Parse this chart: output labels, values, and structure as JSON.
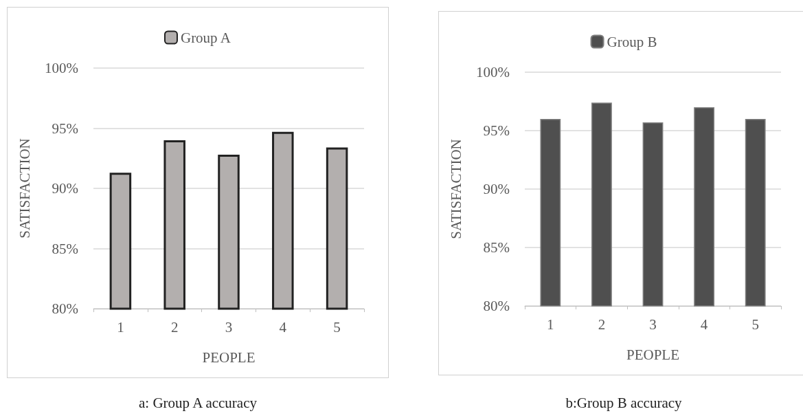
{
  "chart_data": [
    {
      "type": "bar",
      "categories": [
        "1",
        "2",
        "3",
        "4",
        "5"
      ],
      "xlabel": "PEOPLE",
      "ylabel": "SATISFACTION",
      "series": [
        {
          "name": "Group A",
          "color": "#b3afae",
          "values": [
            91.3,
            94.0,
            92.8,
            94.7,
            93.4
          ]
        }
      ],
      "ylim": [
        80,
        100
      ],
      "yticks": [
        {
          "value": 80,
          "label": "80%"
        },
        {
          "value": 85,
          "label": "85%"
        },
        {
          "value": 90,
          "label": "90%"
        },
        {
          "value": 95,
          "label": "95%"
        },
        {
          "value": 100,
          "label": "100%"
        }
      ],
      "grid": "y",
      "legend": "top",
      "annotations": [
        "a: Group A accuracy"
      ]
    },
    {
      "type": "bar",
      "categories": [
        "1",
        "2",
        "3",
        "4",
        "5"
      ],
      "xlabel": "PEOPLE",
      "ylabel": "SATISFACTION",
      "series": [
        {
          "name": "Group B",
          "color": "#4f4f4f",
          "values": [
            96.0,
            97.4,
            95.7,
            97.0,
            96.0
          ]
        }
      ],
      "ylim": [
        80,
        100
      ],
      "yticks": [
        {
          "value": 80,
          "label": "80%"
        },
        {
          "value": 85,
          "label": "85%"
        },
        {
          "value": 90,
          "label": "90%"
        },
        {
          "value": 95,
          "label": "95%"
        },
        {
          "value": 100,
          "label": "100%"
        }
      ],
      "grid": "y",
      "legend": "top",
      "annotations": [
        "b:Group B accuracy"
      ]
    }
  ]
}
